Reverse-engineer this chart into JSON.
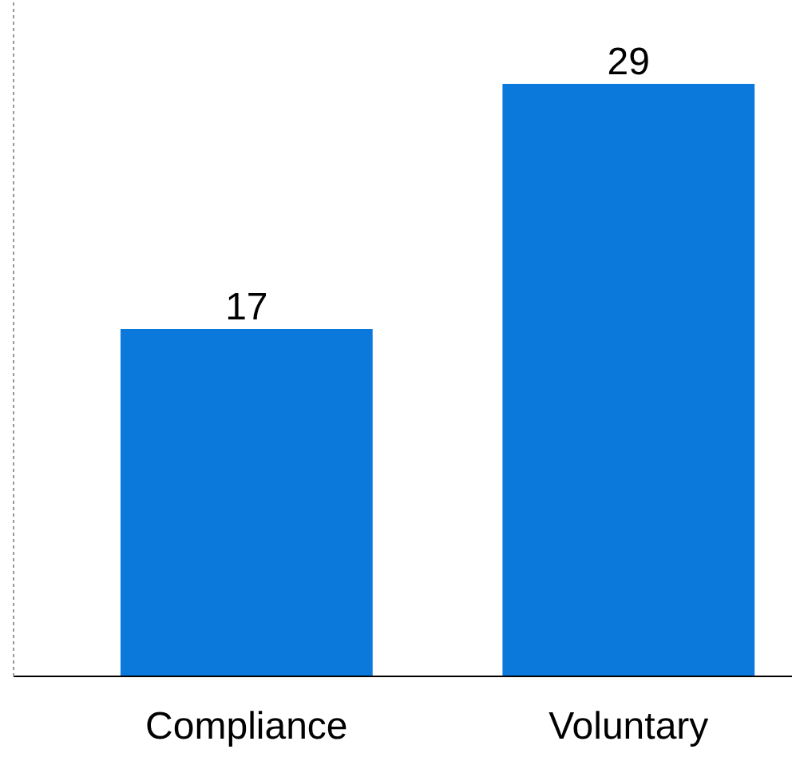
{
  "chart_data": {
    "type": "bar",
    "categories": [
      "Compliance",
      "Voluntary"
    ],
    "values": [
      17,
      29
    ],
    "color": "#0b78dc",
    "data_labels": true,
    "tick_labels": "x"
  }
}
